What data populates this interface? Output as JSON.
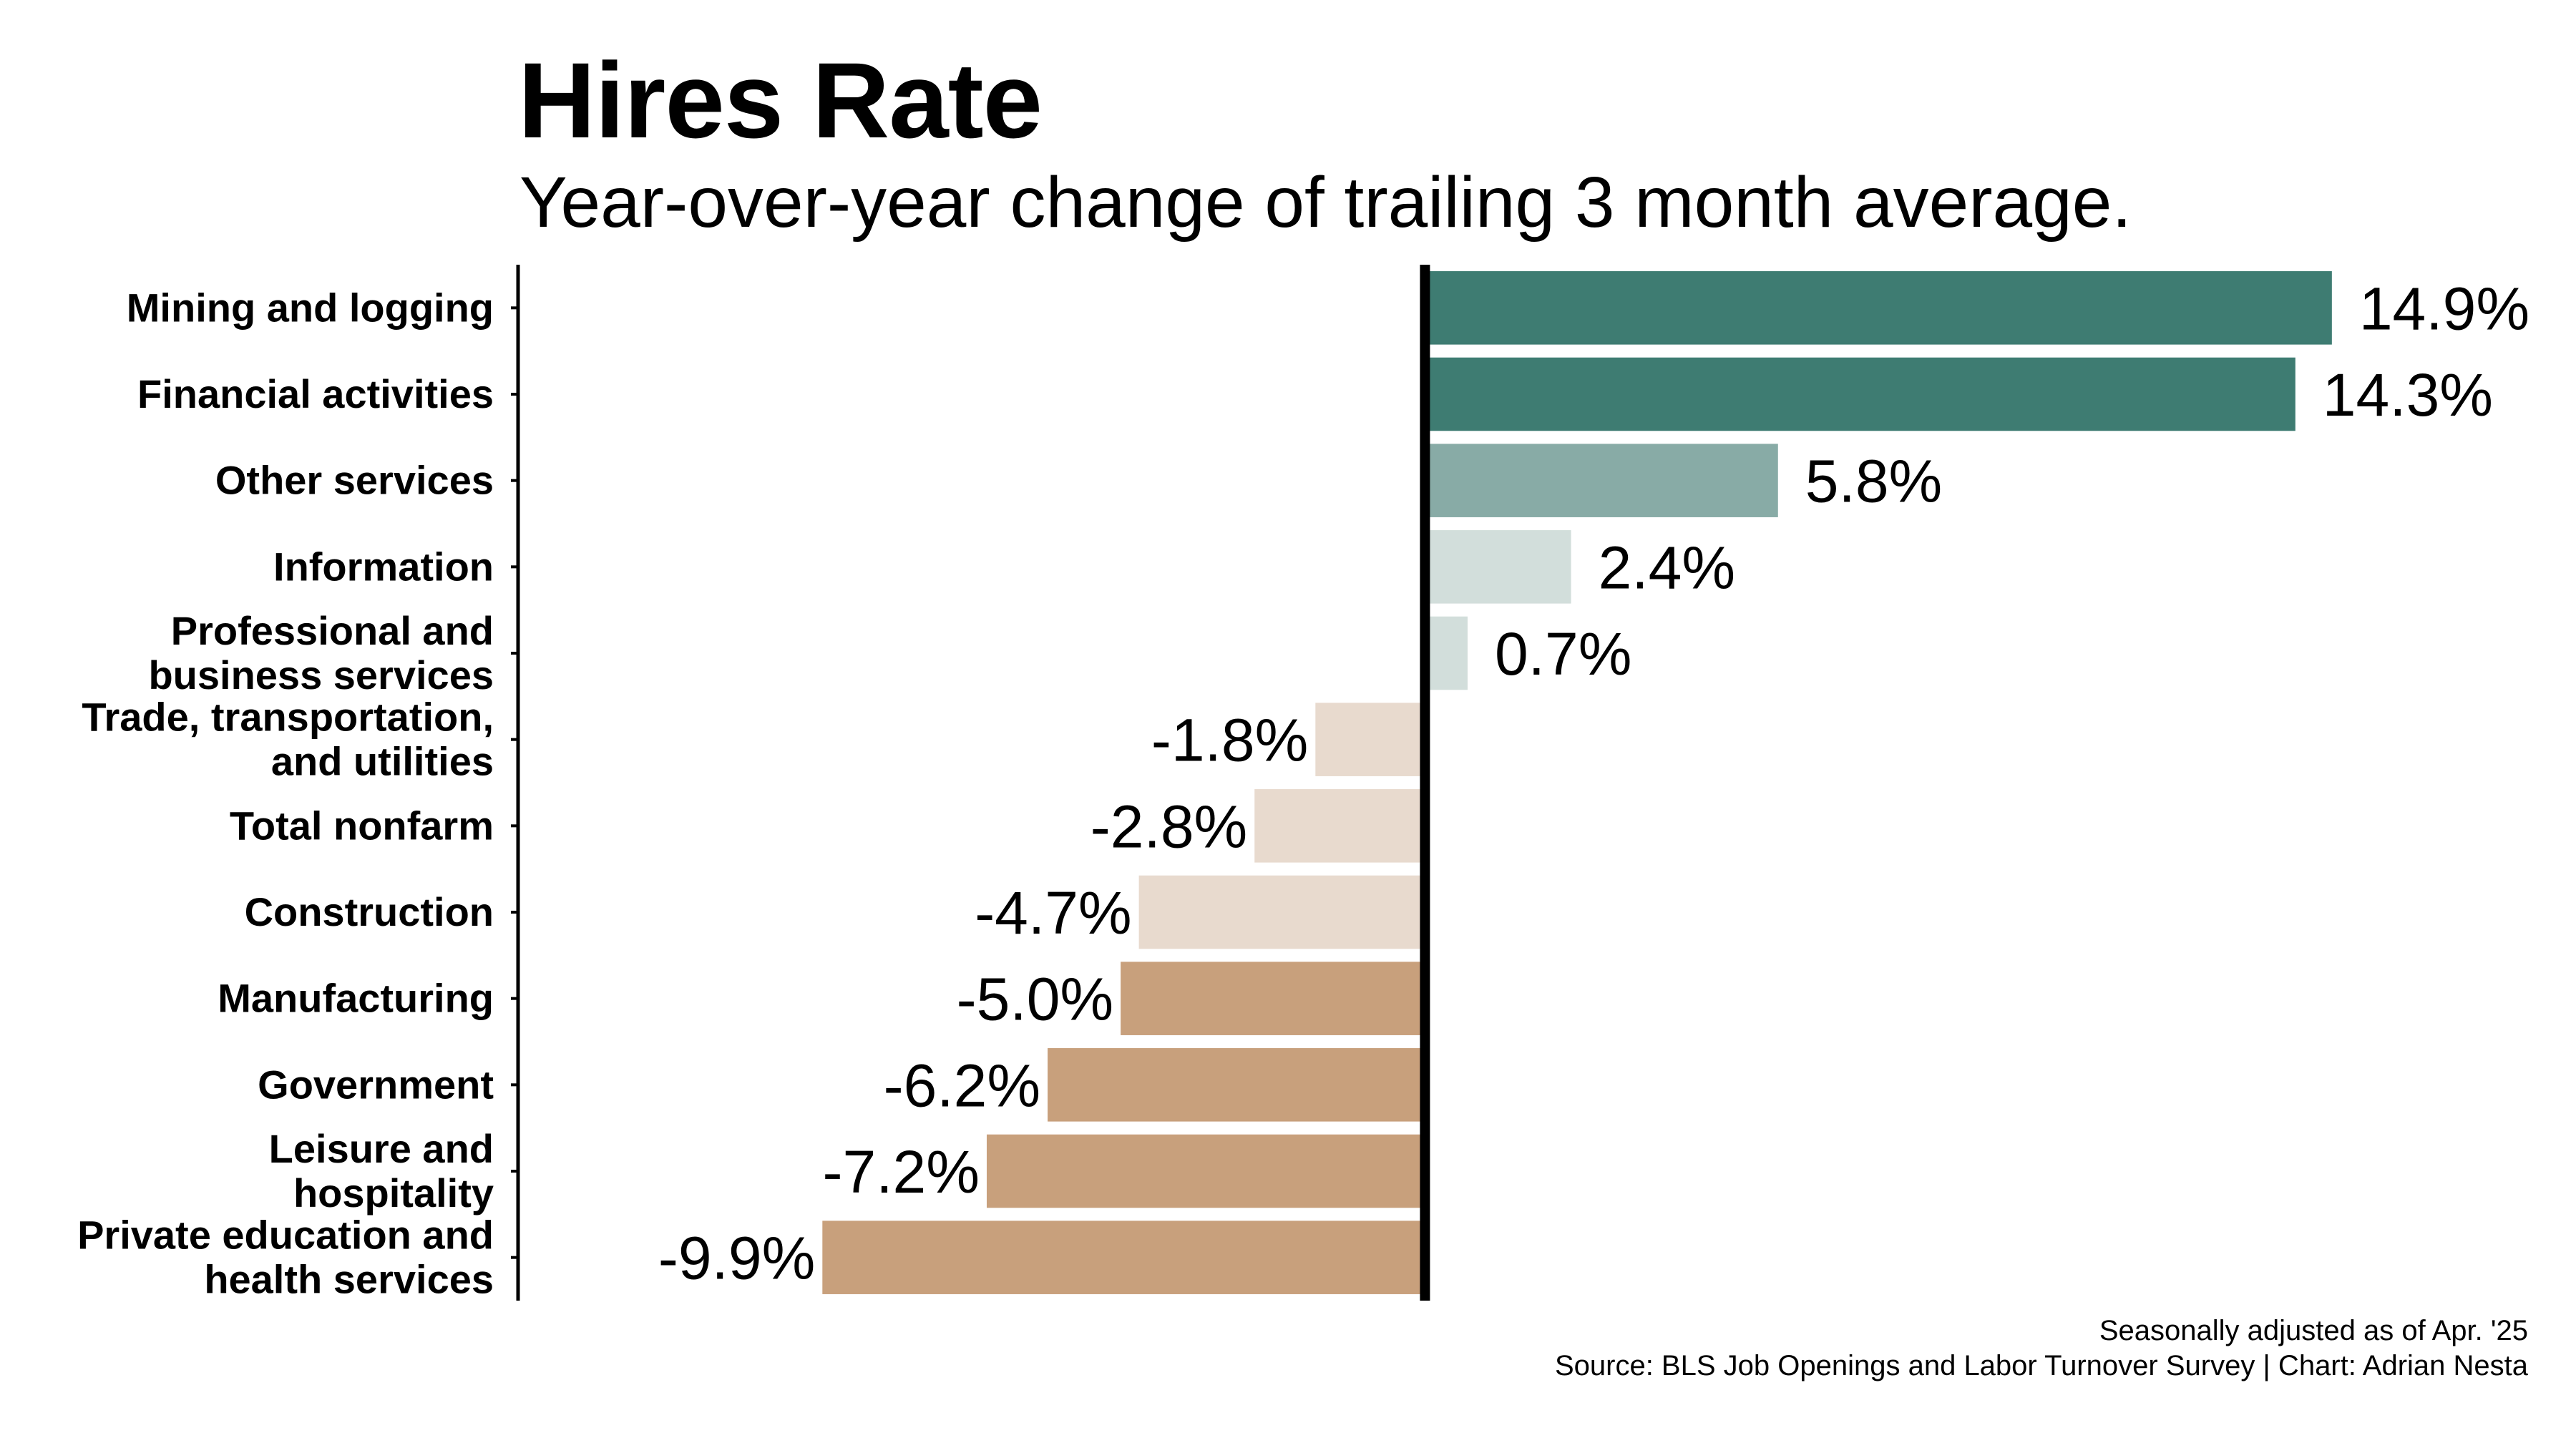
{
  "chart_data": {
    "type": "bar",
    "orientation": "horizontal",
    "title": "Hires Rate",
    "subtitle": "Year-over-year change of trailing 3 month average.",
    "categories": [
      [
        "Mining and logging"
      ],
      [
        "Financial activities"
      ],
      [
        "Other services"
      ],
      [
        "Information"
      ],
      [
        "Professional and",
        "business services"
      ],
      [
        "Trade, transportation,",
        "and utilities"
      ],
      [
        "Total nonfarm"
      ],
      [
        "Construction"
      ],
      [
        "Manufacturing"
      ],
      [
        "Government"
      ],
      [
        "Leisure and",
        "hospitality"
      ],
      [
        "Private education and",
        "health services"
      ]
    ],
    "values": [
      14.9,
      14.3,
      5.8,
      2.4,
      0.7,
      -1.8,
      -2.8,
      -4.7,
      -5.0,
      -6.2,
      -7.2,
      -9.9
    ],
    "value_labels": [
      "14.9%",
      "14.3%",
      "5.8%",
      "2.4%",
      "0.7%",
      "-1.8%",
      "-2.8%",
      "-4.7%",
      "-5.0%",
      "-6.2%",
      "-7.2%",
      "-9.9%"
    ],
    "colors": [
      "#3e7c72",
      "#3e7c72",
      "#88aba6",
      "#d2dedb",
      "#d2dedb",
      "#e8dace",
      "#e8dace",
      "#e8dace",
      "#c8a07c",
      "#c8a07c",
      "#c8a07c",
      "#c8a07c"
    ],
    "xlim": [
      -14.9,
      17.5
    ],
    "xlabel": "",
    "ylabel": "",
    "grid": false,
    "legend": "none"
  },
  "footer": {
    "line1": "Seasonally adjusted as of Apr. '25",
    "line2": "Source: BLS Job Openings and Labor Turnover Survey | Chart: Adrian Nesta"
  }
}
